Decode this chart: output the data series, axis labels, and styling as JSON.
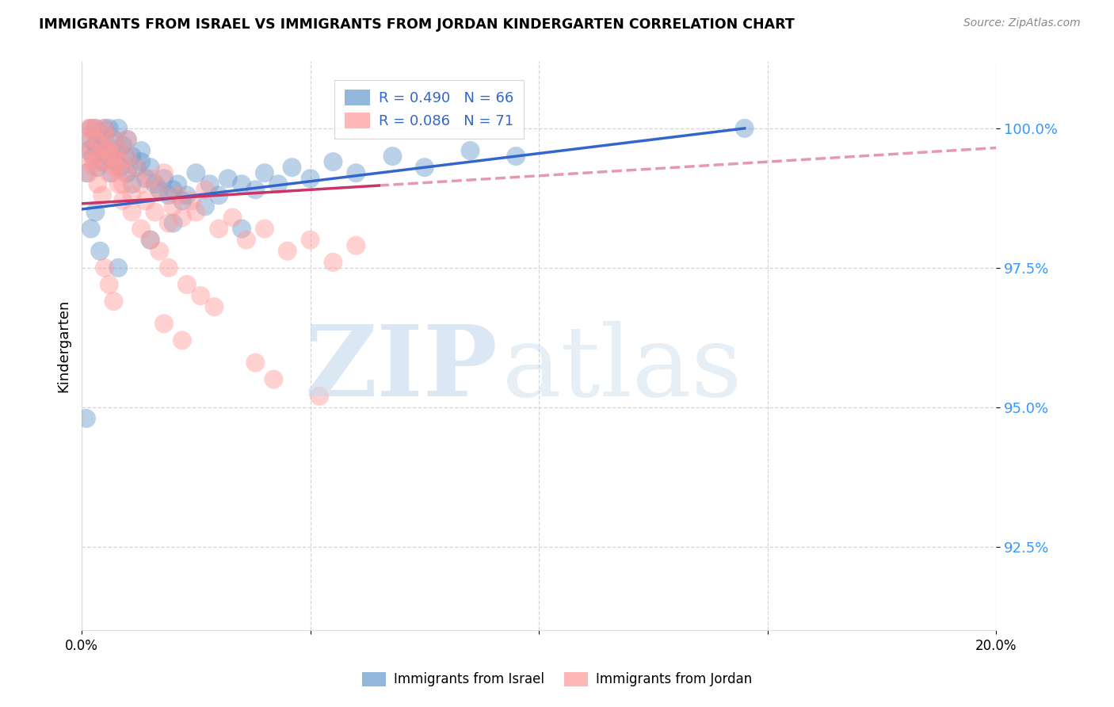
{
  "title": "IMMIGRANTS FROM ISRAEL VS IMMIGRANTS FROM JORDAN KINDERGARTEN CORRELATION CHART",
  "source": "Source: ZipAtlas.com",
  "ylabel": "Kindergarten",
  "ylabel_ticks": [
    "92.5%",
    "95.0%",
    "97.5%",
    "100.0%"
  ],
  "ylabel_tick_vals": [
    92.5,
    95.0,
    97.5,
    100.0
  ],
  "xlim": [
    0.0,
    20.0
  ],
  "ylim": [
    91.0,
    101.2
  ],
  "legend_israel": "R = 0.490   N = 66",
  "legend_jordan": "R = 0.086   N = 71",
  "israel_color": "#6699cc",
  "jordan_color": "#ff9999",
  "israel_line_color": "#3366cc",
  "jordan_line_color": "#cc3366",
  "israel_scatter_x": [
    0.1,
    0.15,
    0.2,
    0.2,
    0.25,
    0.3,
    0.3,
    0.35,
    0.4,
    0.45,
    0.5,
    0.5,
    0.55,
    0.6,
    0.6,
    0.65,
    0.7,
    0.75,
    0.8,
    0.8,
    0.85,
    0.9,
    0.95,
    1.0,
    1.0,
    1.1,
    1.1,
    1.2,
    1.3,
    1.3,
    1.4,
    1.5,
    1.6,
    1.7,
    1.8,
    1.9,
    2.0,
    2.1,
    2.2,
    2.3,
    2.5,
    2.7,
    2.8,
    3.0,
    3.2,
    3.5,
    3.8,
    4.0,
    4.3,
    4.6,
    5.0,
    5.5,
    6.0,
    6.8,
    7.5,
    8.5,
    9.5,
    0.1,
    0.2,
    0.3,
    0.4,
    0.8,
    1.5,
    2.0,
    14.5,
    3.5
  ],
  "israel_scatter_y": [
    99.2,
    99.6,
    99.8,
    100.0,
    99.5,
    99.7,
    100.0,
    99.3,
    99.9,
    99.4,
    99.8,
    100.0,
    99.6,
    99.5,
    100.0,
    99.2,
    99.8,
    99.4,
    99.6,
    100.0,
    99.3,
    99.7,
    99.5,
    99.2,
    99.8,
    99.0,
    99.5,
    99.3,
    99.4,
    99.6,
    99.1,
    99.3,
    99.0,
    98.9,
    99.1,
    98.8,
    98.9,
    99.0,
    98.7,
    98.8,
    99.2,
    98.6,
    99.0,
    98.8,
    99.1,
    99.0,
    98.9,
    99.2,
    99.0,
    99.3,
    99.1,
    99.4,
    99.2,
    99.5,
    99.3,
    99.6,
    99.5,
    94.8,
    98.2,
    98.5,
    97.8,
    97.5,
    98.0,
    98.3,
    100.0,
    98.2
  ],
  "jordan_scatter_x": [
    0.05,
    0.1,
    0.15,
    0.2,
    0.2,
    0.25,
    0.3,
    0.3,
    0.35,
    0.4,
    0.45,
    0.5,
    0.5,
    0.55,
    0.6,
    0.65,
    0.7,
    0.75,
    0.8,
    0.85,
    0.9,
    0.95,
    1.0,
    1.0,
    1.1,
    1.2,
    1.3,
    1.4,
    1.5,
    1.6,
    1.7,
    1.8,
    1.9,
    2.0,
    2.1,
    2.2,
    2.4,
    2.5,
    2.7,
    3.0,
    3.3,
    3.6,
    4.0,
    4.5,
    5.0,
    5.5,
    6.0,
    0.15,
    0.25,
    0.35,
    0.45,
    0.6,
    0.7,
    0.8,
    0.9,
    1.1,
    1.3,
    1.5,
    1.7,
    1.9,
    2.3,
    2.6,
    2.9,
    0.5,
    0.6,
    0.7,
    1.8,
    2.2,
    3.8,
    4.2,
    5.2
  ],
  "jordan_scatter_y": [
    99.5,
    99.8,
    100.0,
    99.6,
    100.0,
    99.3,
    99.8,
    100.0,
    99.5,
    99.7,
    99.4,
    99.9,
    100.0,
    99.6,
    99.2,
    99.5,
    99.8,
    99.3,
    99.6,
    99.4,
    99.0,
    99.2,
    99.5,
    99.8,
    98.8,
    99.3,
    99.0,
    98.7,
    99.1,
    98.5,
    98.9,
    99.2,
    98.3,
    98.6,
    98.8,
    98.4,
    98.7,
    98.5,
    98.9,
    98.2,
    98.4,
    98.0,
    98.2,
    97.8,
    98.0,
    97.6,
    97.9,
    99.2,
    99.4,
    99.0,
    98.8,
    99.6,
    99.3,
    99.0,
    98.7,
    98.5,
    98.2,
    98.0,
    97.8,
    97.5,
    97.2,
    97.0,
    96.8,
    97.5,
    97.2,
    96.9,
    96.5,
    96.2,
    95.8,
    95.5,
    95.2
  ],
  "israel_line_x0": 0.0,
  "israel_line_x1": 14.5,
  "jordan_line_x0": 0.0,
  "jordan_line_x1": 6.5,
  "jordan_dash_x0": 6.5,
  "jordan_dash_x1": 20.0
}
